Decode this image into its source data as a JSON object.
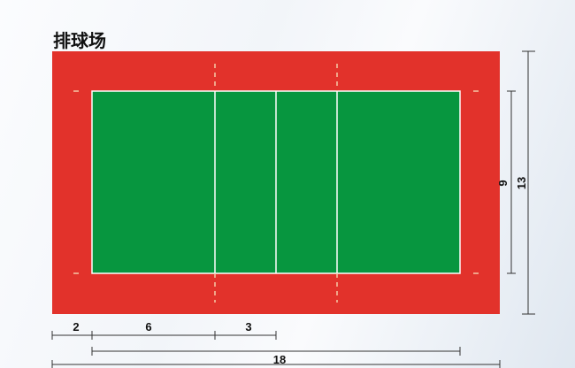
{
  "title": "排球场",
  "colors": {
    "free_zone": "#e2322b",
    "court": "#07963f",
    "lines": "#ffffff",
    "dimension_lines": "#333333"
  },
  "dimensions": {
    "free_zone_width": "2",
    "back_zone_depth": "6",
    "attack_zone_depth": "3",
    "court_length": "18",
    "court_width": "9",
    "total_width": "13"
  }
}
